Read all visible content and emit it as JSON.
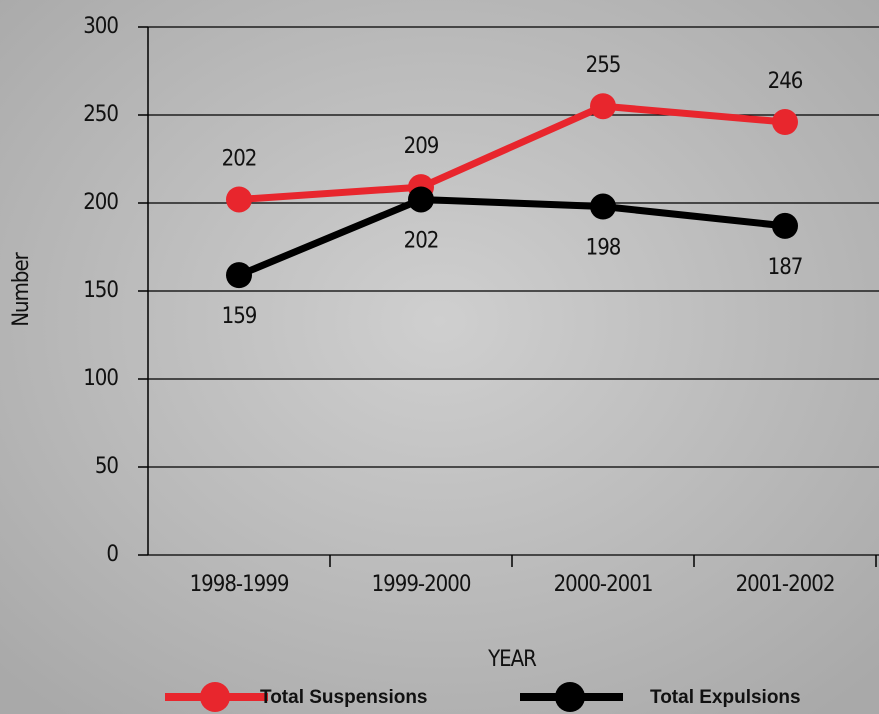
{
  "chart_data": {
    "type": "line",
    "x_label": "YEAR",
    "y_label": "Number",
    "categories": [
      "1998-1999",
      "1999-2000",
      "2000-2001",
      "2001-2002"
    ],
    "series": [
      {
        "name": "Total Suspensions",
        "color": "#e8262d",
        "values": [
          202,
          209,
          255,
          246
        ]
      },
      {
        "name": "Total Expulsions",
        "color": "#000000",
        "values": [
          159,
          202,
          198,
          187
        ]
      }
    ],
    "ylim": [
      0,
      300
    ],
    "yticks": [
      0,
      50,
      100,
      150,
      200,
      250,
      300
    ],
    "grid": true,
    "legend": "bottom"
  }
}
